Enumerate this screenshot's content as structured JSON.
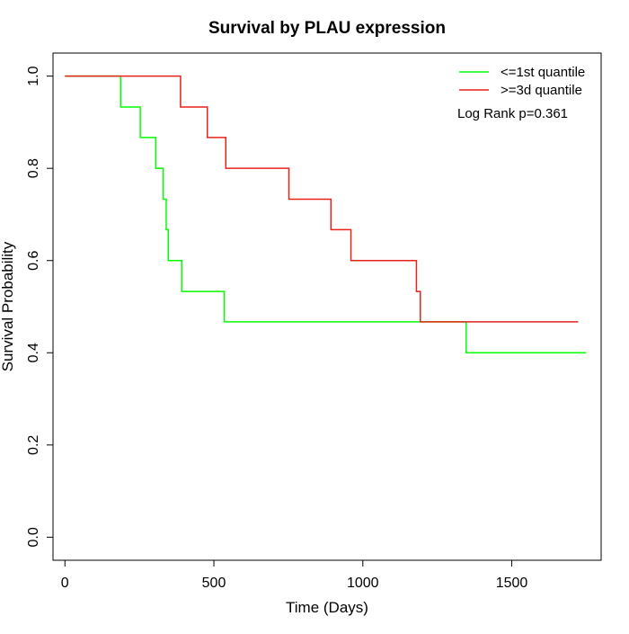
{
  "chart_data": {
    "type": "line",
    "title": "Survival by PLAU expression",
    "xlabel": "Time (Days)",
    "ylabel": "Survival Probability",
    "xlim": [
      -40,
      1800
    ],
    "ylim": [
      -0.05,
      1.05
    ],
    "xticks": [
      0,
      500,
      1000,
      1500
    ],
    "yticks": [
      0.0,
      0.2,
      0.4,
      0.6,
      0.8,
      1.0
    ],
    "xtick_labels": [
      "0",
      "500",
      "1000",
      "1500"
    ],
    "ytick_labels": [
      "0.0",
      "0.2",
      "0.4",
      "0.6",
      "0.8",
      "1.0"
    ],
    "grid": false,
    "step": true,
    "legend_position": "top-right",
    "annotation": "Log Rank p=0.361",
    "series": [
      {
        "name": "<=1st quantile",
        "color": "#00ff00",
        "points": [
          [
            0,
            1.0
          ],
          [
            187,
            0.933
          ],
          [
            253,
            0.867
          ],
          [
            305,
            0.8
          ],
          [
            330,
            0.733
          ],
          [
            340,
            0.667
          ],
          [
            347,
            0.6
          ],
          [
            392,
            0.533
          ],
          [
            535,
            0.467
          ],
          [
            1347,
            0.4
          ],
          [
            1750,
            0.4
          ]
        ]
      },
      {
        "name": ">=3d quantile",
        "color": "#e8221a",
        "points": [
          [
            0,
            1.0
          ],
          [
            388,
            0.933
          ],
          [
            478,
            0.867
          ],
          [
            540,
            0.8
          ],
          [
            752,
            0.733
          ],
          [
            893,
            0.667
          ],
          [
            960,
            0.6
          ],
          [
            1180,
            0.533
          ],
          [
            1193,
            0.467
          ],
          [
            1723,
            0.467
          ]
        ]
      }
    ]
  }
}
